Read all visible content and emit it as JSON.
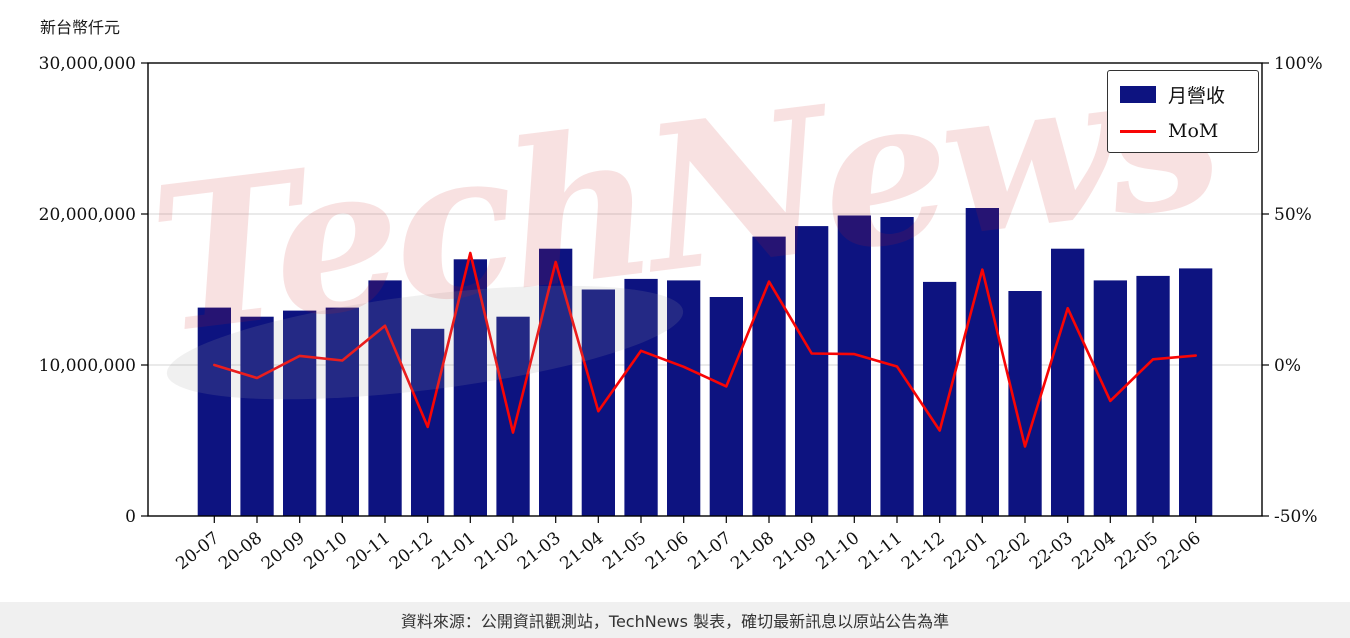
{
  "unit_label": "新台幣仟元",
  "watermark": {
    "text": "TechNews"
  },
  "legend": {
    "bar_label": "月營收",
    "line_label": "MoM"
  },
  "footer": {
    "text": "資料來源：公開資訊觀測站，TechNews 製表，確切最新訊息以原站公告為準"
  },
  "colors": {
    "bar": "#0d1380",
    "line": "#f80505",
    "grid": "#d6d6d6",
    "axis": "#000000",
    "tick_text": "#111111",
    "watermark": "#cc2222",
    "footer_bg": "#f0f0f0"
  },
  "chart_data": {
    "type": "bar",
    "title": "",
    "categories": [
      "20-07",
      "20-08",
      "20-09",
      "20-10",
      "20-11",
      "20-12",
      "21-01",
      "21-02",
      "21-03",
      "21-04",
      "21-05",
      "21-06",
      "21-07",
      "21-08",
      "21-09",
      "21-10",
      "21-11",
      "21-12",
      "22-01",
      "22-02",
      "22-03",
      "22-04",
      "22-05",
      "22-06"
    ],
    "series": [
      {
        "name": "月營收",
        "type": "bar",
        "axis": "left",
        "values": [
          13800000,
          13200000,
          13600000,
          13800000,
          15600000,
          12400000,
          17000000,
          13200000,
          17700000,
          15000000,
          15700000,
          15600000,
          14500000,
          18500000,
          19200000,
          19900000,
          19800000,
          15500000,
          20400000,
          14900000,
          17700000,
          15600000,
          15900000,
          16400000
        ]
      },
      {
        "name": "MoM",
        "type": "line",
        "axis": "right",
        "values": [
          0,
          -4.3,
          3.0,
          1.5,
          13.0,
          -20.5,
          37.1,
          -22.4,
          34.1,
          -15.3,
          4.7,
          -0.6,
          -7.1,
          27.6,
          3.8,
          3.6,
          -0.5,
          -21.7,
          31.6,
          -27.0,
          18.8,
          -11.9,
          1.9,
          3.1
        ]
      }
    ],
    "left_axis": {
      "label": "新台幣仟元",
      "range": [
        0,
        30000000
      ],
      "ticks": [
        0,
        10000000,
        20000000,
        30000000
      ],
      "tick_labels": [
        "0",
        "10,000,000",
        "20,000,000",
        "30,000,000"
      ]
    },
    "right_axis": {
      "range": [
        -50,
        100
      ],
      "ticks": [
        -50,
        0,
        50,
        100
      ],
      "tick_labels": [
        "-50%",
        "0%",
        "50%",
        "100%"
      ]
    },
    "grid": "horizontal lines at 10,000,000 and 20,000,000",
    "legend_position": "top-right"
  }
}
